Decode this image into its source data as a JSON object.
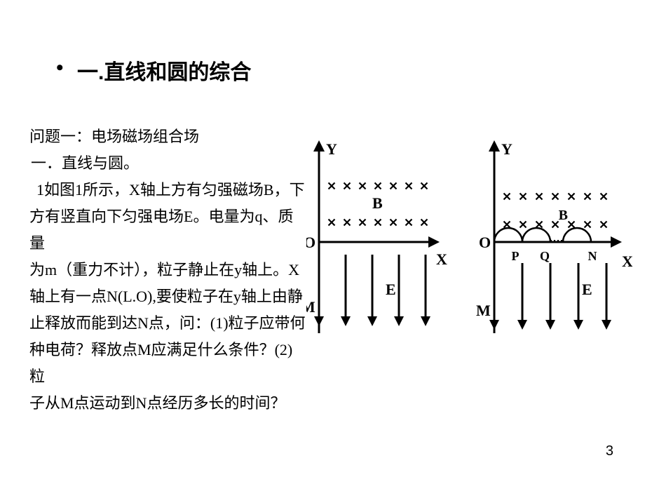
{
  "heading": "一.直线和圆的综合",
  "body": {
    "l1": "问题一：电场磁场组合场",
    "l2": "一．直线与圆。",
    "l3a": "1如图1所示，X轴上方有匀强磁场B，下",
    "l3b": "方有竖直向下匀强电场E。电量为q、质量",
    "l3c": "为m（重力不计），粒子静止在y轴上。X",
    "l3d": "轴上有一点N(L.O),要使粒子在y轴上由静",
    "l3e": "止释放而能到达N点，问：(1)粒子应带何",
    "l3f": "种电荷？释放点M应满足什么条件？(2)粒",
    "l3g": "子从M点运动到N点经历多长的时间？"
  },
  "fig1": {
    "labels": {
      "Y": "Y",
      "X": "X",
      "O": "O",
      "M": "M",
      "E": "E",
      "B": "B"
    },
    "cross_rows": 2,
    "cross_cols": 7,
    "efield_arrows": 5
  },
  "fig2": {
    "labels": {
      "Y": "Y",
      "X": "X",
      "O": "O",
      "M": "M",
      "E": "E",
      "B": "B",
      "P": "P",
      "Q": "Q",
      "N": "N"
    },
    "cross_rows": 2,
    "cross_cols": 7,
    "efield_arrows": 5,
    "arcs": 3
  },
  "style": {
    "stroke": "#000000",
    "stroke_width": 3,
    "cross_size": 9,
    "cross_stroke": 2.2,
    "arrow_len": 16,
    "font_size_axis": 22,
    "font_size_small": 18,
    "background": "#ffffff"
  },
  "pagenum": "3"
}
